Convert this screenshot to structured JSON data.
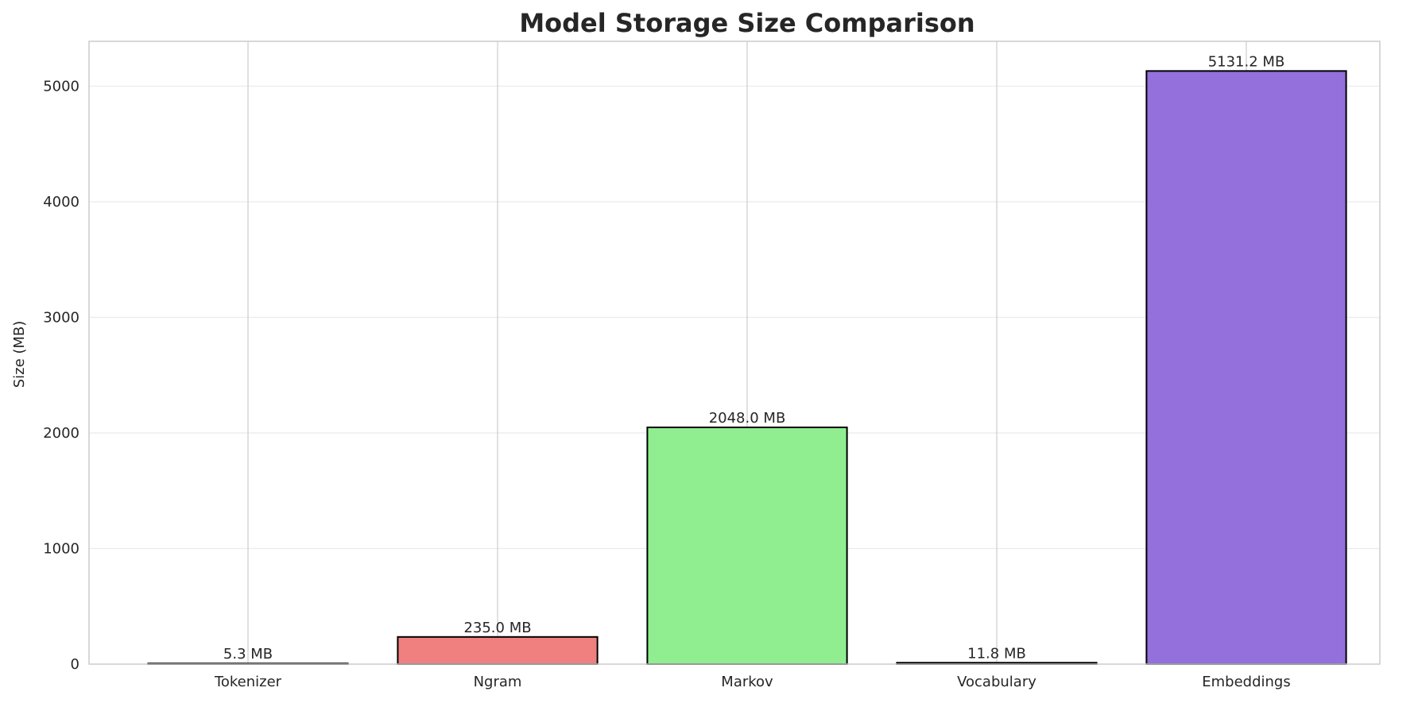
{
  "chart_data": {
    "type": "bar",
    "title": "Model Storage Size Comparison",
    "xlabel": "",
    "ylabel": "Size (MB)",
    "categories": [
      "Tokenizer",
      "Ngram",
      "Markov",
      "Vocabulary",
      "Embeddings"
    ],
    "values": [
      5.3,
      235.0,
      2048.0,
      11.8,
      5131.2
    ],
    "value_labels": [
      "5.3 MB",
      "235.0 MB",
      "2048.0 MB",
      "11.8 MB",
      "5131.2 MB"
    ],
    "colors": [
      "#87ceeb",
      "#f08080",
      "#90ee90",
      "#ffd700",
      "#9370db"
    ],
    "ylim": [
      0,
      5388
    ],
    "yticks": [
      0,
      1000,
      2000,
      3000,
      4000,
      5000
    ],
    "grid": true
  }
}
